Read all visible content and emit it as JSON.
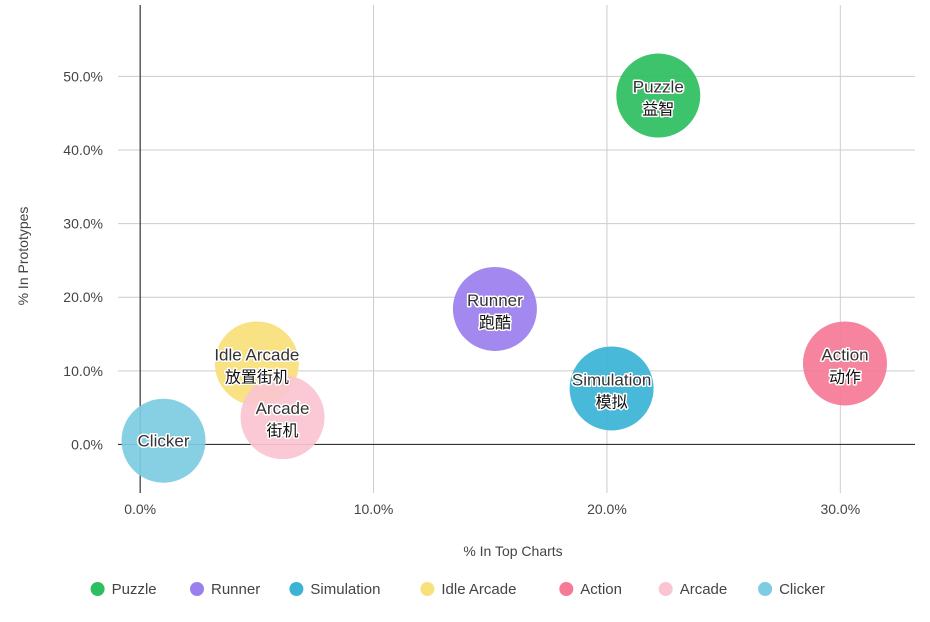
{
  "chart_data": {
    "type": "scatter",
    "variant": "bubble",
    "xlabel": "% In Top Charts",
    "ylabel": "% In Prototypes",
    "xlim": [
      -0.0095,
      0.332
    ],
    "ylim": [
      -0.066,
      0.597
    ],
    "x_ticks": [
      {
        "value": 0.0,
        "label": "0.0%"
      },
      {
        "value": 0.1,
        "label": "10.0%"
      },
      {
        "value": 0.2,
        "label": "20.0%"
      },
      {
        "value": 0.3,
        "label": "30.0%"
      }
    ],
    "y_ticks": [
      {
        "value": 0.0,
        "label": "0.0%"
      },
      {
        "value": 0.1,
        "label": "10.0%"
      },
      {
        "value": 0.2,
        "label": "20.0%"
      },
      {
        "value": 0.3,
        "label": "30.0%"
      },
      {
        "value": 0.4,
        "label": "40.0%"
      },
      {
        "value": 0.5,
        "label": "50.0%"
      }
    ],
    "grid": true,
    "legend_position": "bottom",
    "series": [
      {
        "name": "Puzzle",
        "label": "Puzzle",
        "sublabel": "益智",
        "x": 0.222,
        "y": 0.474,
        "color": "#2DBE60"
      },
      {
        "name": "Runner",
        "label": "Runner",
        "sublabel": "跑酷",
        "x": 0.152,
        "y": 0.184,
        "color": "#9B7FEE"
      },
      {
        "name": "Simulation",
        "label": "Simulation",
        "sublabel": "模拟",
        "x": 0.202,
        "y": 0.076,
        "color": "#3AB3D6"
      },
      {
        "name": "Idle Arcade",
        "label": "Idle Arcade",
        "sublabel": "放置街机",
        "x": 0.05,
        "y": 0.11,
        "color": "#F8E07A"
      },
      {
        "name": "Action",
        "label": "Action",
        "sublabel": "动作",
        "x": 0.302,
        "y": 0.11,
        "color": "#F57A96"
      },
      {
        "name": "Arcade",
        "label": "Arcade",
        "sublabel": "街机",
        "x": 0.061,
        "y": 0.037,
        "color": "#FAC4D1"
      },
      {
        "name": "Clicker",
        "label": "Clicker",
        "sublabel": "",
        "x": 0.01,
        "y": 0.005,
        "color": "#7DCCE2"
      }
    ]
  }
}
